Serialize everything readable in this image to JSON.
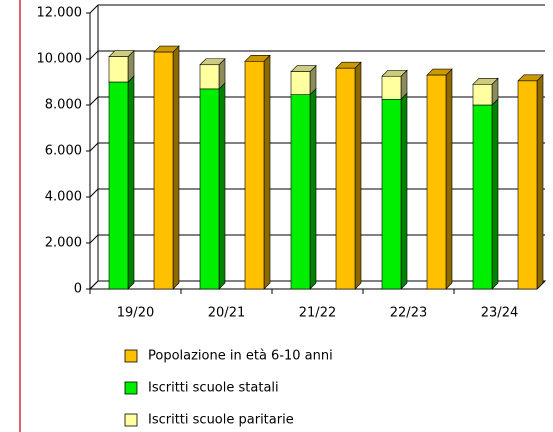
{
  "chart_data": {
    "type": "bar3d",
    "categories": [
      "19/20",
      "20/21",
      "21/22",
      "22/23",
      "23/24"
    ],
    "series": [
      {
        "name": "Popolazione in età 6-10 anni",
        "color": "#ffc000",
        "values": [
          10300,
          9900,
          9600,
          9300,
          9050
        ]
      },
      {
        "name": "Iscritti scuole statali",
        "color": "#00ee00",
        "values": [
          9000,
          8700,
          8450,
          8250,
          8000
        ]
      },
      {
        "name": "Iscritti scuole paritarie",
        "color": "#ffffa0",
        "values": [
          1100,
          1050,
          1000,
          1000,
          900
        ]
      }
    ],
    "ylim": [
      0,
      12000
    ],
    "yticks": [
      0,
      {
        "value": 2000,
        "label": "2.000"
      },
      {
        "value": 4000,
        "label": "4.000"
      },
      {
        "value": 6000,
        "label": "6.000"
      },
      {
        "value": 8000,
        "label": "8.000"
      },
      {
        "value": 10000,
        "label": "10.000"
      },
      {
        "value": 12000,
        "label": "12.000"
      }
    ],
    "grid": true
  }
}
